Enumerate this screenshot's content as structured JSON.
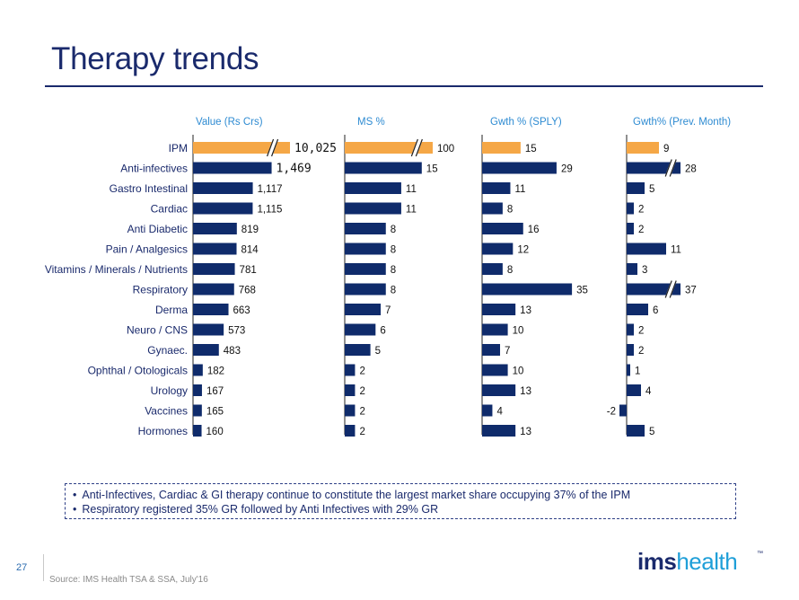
{
  "title": "Therapy trends",
  "colors": {
    "highlight": "#F5A746",
    "bar": "#0F2B6B",
    "header": "#2E8BD2",
    "label": "#1A2A6C"
  },
  "chart_data": {
    "type": "bar",
    "orientation": "horizontal",
    "categories": [
      "IPM",
      "Anti-infectives",
      "Gastro Intestinal",
      "Cardiac",
      "Anti Diabetic",
      "Pain / Analgesics",
      "Vitamins / Minerals / Nutrients",
      "Respiratory",
      "Derma",
      "Neuro / CNS",
      "Gynaec.",
      "Ophthal / Otologicals",
      "Urology",
      "Vaccines",
      "Hormones"
    ],
    "highlight_category": "IPM",
    "series": [
      {
        "name": "Value (Rs Crs)",
        "values": [
          10025,
          1469,
          1117,
          1115,
          819,
          814,
          781,
          768,
          663,
          573,
          483,
          182,
          167,
          165,
          160
        ],
        "labels": [
          "10,025",
          "1,469",
          "1,117",
          "1,115",
          "819",
          "814",
          "781",
          "768",
          "663",
          "573",
          "483",
          "182",
          "167",
          "165",
          "160"
        ],
        "broken": [
          "IPM"
        ]
      },
      {
        "name": "MS %",
        "values": [
          100,
          15,
          11,
          11,
          8,
          8,
          8,
          8,
          7,
          6,
          5,
          2,
          2,
          2,
          2
        ],
        "labels": [
          "100",
          "15",
          "11",
          "11",
          "8",
          "8",
          "8",
          "8",
          "7",
          "6",
          "5",
          "2",
          "2",
          "2",
          "2"
        ],
        "broken": [
          "IPM"
        ]
      },
      {
        "name": "Gwth % (SPLY)",
        "values": [
          15,
          29,
          11,
          8,
          16,
          12,
          8,
          35,
          13,
          10,
          7,
          10,
          13,
          4,
          13
        ],
        "labels": [
          "15",
          "29",
          "11",
          "8",
          "16",
          "12",
          "8",
          "35",
          "13",
          "10",
          "7",
          "10",
          "13",
          "4",
          "13"
        ],
        "broken": []
      },
      {
        "name": "Gwth% (Prev. Month)",
        "values": [
          9,
          28,
          5,
          2,
          2,
          11,
          3,
          37,
          6,
          2,
          2,
          1,
          4,
          -2,
          5
        ],
        "labels": [
          "9",
          "28",
          "5",
          "2",
          "2",
          "11",
          "3",
          "37",
          "6",
          "2",
          "2",
          "1",
          "4",
          "-2",
          "5"
        ],
        "broken": [
          "Anti-infectives",
          "Respiratory"
        ]
      }
    ]
  },
  "bullets": [
    "Anti-Infectives, Cardiac & GI therapy continue to constitute the largest market share occupying 37% of the IPM",
    "Respiratory registered 35% GR followed by Anti Infectives with 29% GR"
  ],
  "page_number": "27",
  "source": "Source: IMS Health TSA & SSA, July'16",
  "logo": {
    "part1": "ims",
    "part2": "health",
    "tm": "™"
  }
}
